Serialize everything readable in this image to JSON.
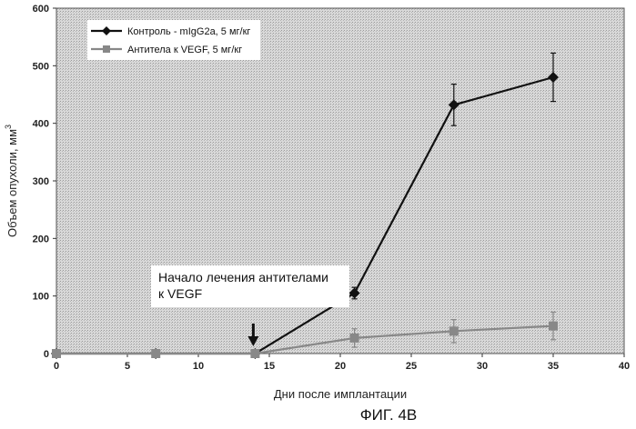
{
  "chart_data": {
    "type": "line",
    "x_ticks": [
      0,
      5,
      10,
      15,
      20,
      25,
      30,
      35,
      40
    ],
    "y_ticks": [
      0,
      100,
      200,
      300,
      400,
      500,
      600
    ],
    "xlim": [
      0,
      40
    ],
    "ylim": [
      0,
      600
    ],
    "xlabel": "Дни после имплантации",
    "ylabel_main": "Объем опухоли, мм",
    "ylabel_sup": "3",
    "grid": false,
    "legend_position": "top-left",
    "series": [
      {
        "name": "Контроль - mIgG2a, 5 мг/кг",
        "marker": "diamond",
        "color": "#111111",
        "x": [
          0,
          7,
          14,
          21,
          28,
          35
        ],
        "y": [
          0,
          0,
          0,
          105,
          432,
          480
        ],
        "err": [
          0,
          0,
          0,
          10,
          36,
          42
        ]
      },
      {
        "name": "Антитела к VEGF, 5 мг/кг",
        "marker": "square",
        "color": "#888888",
        "x": [
          0,
          7,
          14,
          21,
          28,
          35
        ],
        "y": [
          0,
          0,
          0,
          27,
          39,
          48
        ],
        "err": [
          0,
          0,
          0,
          16,
          20,
          24
        ]
      }
    ],
    "annotation": {
      "lines": [
        "Начало лечения антителами",
        "к VEGF"
      ],
      "arrow_x": 14
    }
  },
  "caption": "ФИГ. 4B"
}
